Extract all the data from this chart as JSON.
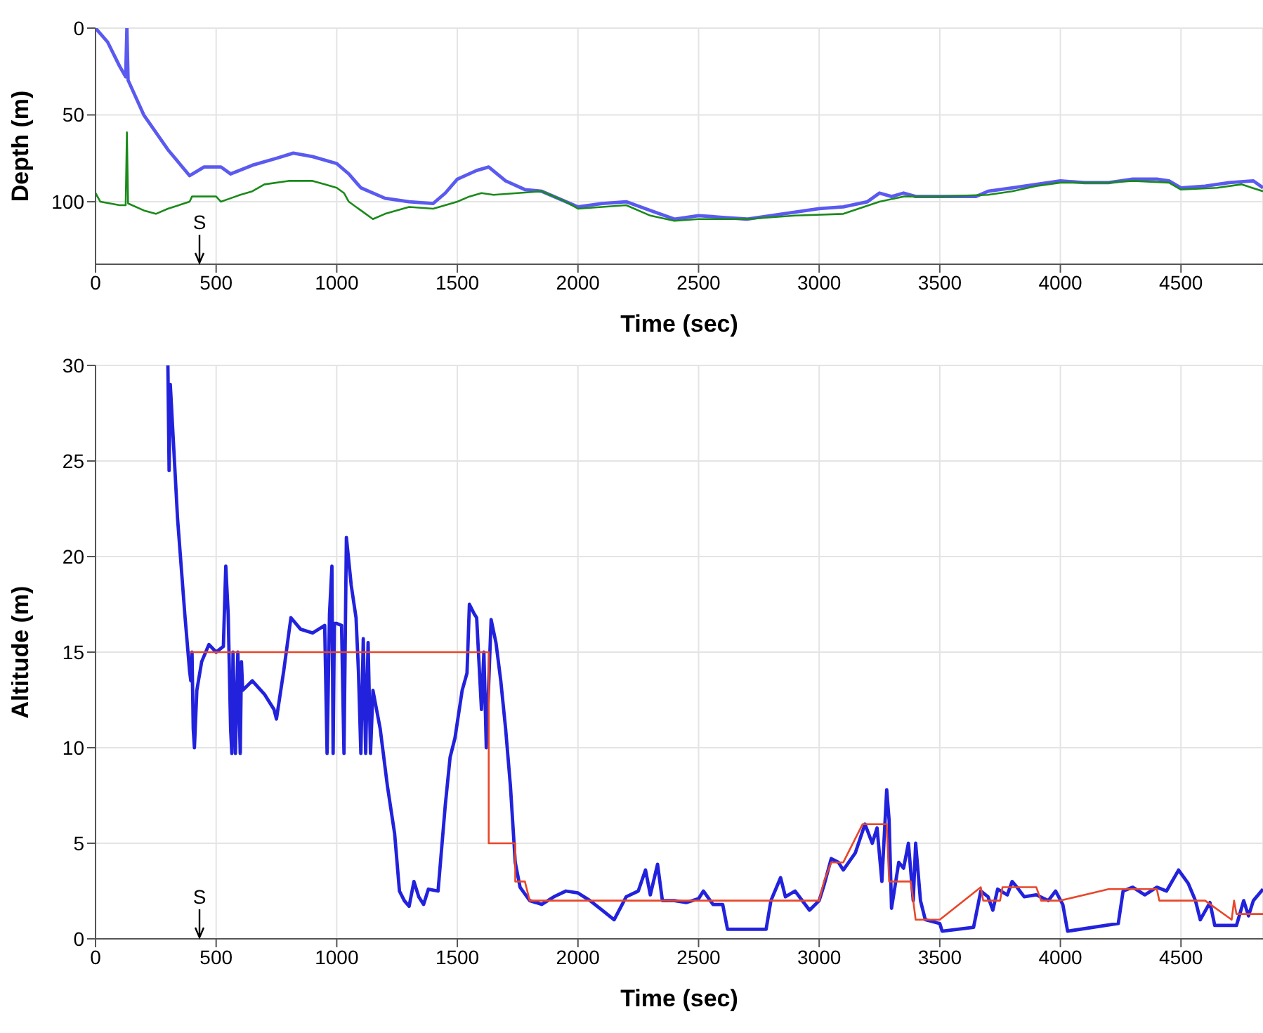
{
  "chart_data": [
    {
      "type": "line",
      "xlabel": "Time (sec)",
      "ylabel": "Depth (m)",
      "xlim": [
        0,
        4840
      ],
      "xticks": [
        0,
        500,
        1000,
        1500,
        2000,
        2500,
        3000,
        3500,
        4000,
        4500
      ],
      "ylim": [
        136,
        0
      ],
      "yticks": [
        0,
        50,
        100
      ],
      "grid": true,
      "annotations": [
        "S"
      ],
      "series": [
        {
          "color": "#5a5af0",
          "x": [
            0,
            50,
            100,
            125,
            130,
            135,
            200,
            300,
            390,
            450,
            520,
            560,
            650,
            750,
            820,
            900,
            1000,
            1050,
            1100,
            1200,
            1300,
            1400,
            1450,
            1500,
            1580,
            1630,
            1700,
            1780,
            1850,
            1950,
            2000,
            2100,
            2200,
            2300,
            2400,
            2500,
            2600,
            2700,
            2800,
            2900,
            3000,
            3100,
            3200,
            3250,
            3300,
            3350,
            3400,
            3500,
            3650,
            3700,
            3800,
            3900,
            4000,
            4100,
            4200,
            4300,
            4400,
            4450,
            4500,
            4600,
            4700,
            4800,
            4840
          ],
          "values": [
            0,
            8,
            22,
            28,
            0,
            30,
            50,
            70,
            85,
            80,
            80,
            84,
            79,
            75,
            72,
            74,
            78,
            84,
            92,
            98,
            100,
            101,
            95,
            87,
            82,
            80,
            88,
            93,
            94,
            100,
            103,
            101,
            100,
            105,
            110,
            108,
            109,
            110,
            108,
            106,
            104,
            103,
            100,
            95,
            97,
            95,
            97,
            97,
            97,
            94,
            92,
            90,
            88,
            89,
            89,
            87,
            87,
            88,
            92,
            91,
            89,
            88,
            92
          ]
        },
        {
          "color": "#1a8a1a",
          "x": [
            0,
            20,
            60,
            100,
            125,
            130,
            135,
            200,
            250,
            300,
            390,
            400,
            500,
            520,
            560,
            600,
            650,
            700,
            800,
            900,
            950,
            1000,
            1030,
            1050,
            1100,
            1150,
            1200,
            1300,
            1400,
            1450,
            1500,
            1550,
            1600,
            1650,
            1750,
            1850,
            1950,
            2000,
            2100,
            2200,
            2300,
            2400,
            2500,
            2700,
            2900,
            3100,
            3250,
            3350,
            3500,
            3700,
            3800,
            3900,
            4000,
            4200,
            4300,
            4450,
            4500,
            4650,
            4750,
            4840
          ],
          "values": [
            95,
            100,
            101,
            102,
            102,
            60,
            101,
            105,
            107,
            104,
            100,
            97,
            97,
            100,
            98,
            96,
            94,
            90,
            88,
            88,
            90,
            92,
            95,
            100,
            105,
            110,
            107,
            103,
            104,
            102,
            100,
            97,
            95,
            96,
            95,
            94,
            100,
            104,
            103,
            102,
            108,
            111,
            110,
            110,
            108,
            107,
            100,
            97,
            97,
            96,
            94,
            91,
            89,
            89,
            88,
            89,
            93,
            92,
            90,
            94
          ]
        }
      ]
    },
    {
      "type": "line",
      "xlabel": "Time (sec)",
      "ylabel": "Altitude (m)",
      "xlim": [
        0,
        4840
      ],
      "xticks": [
        0,
        500,
        1000,
        1500,
        2000,
        2500,
        3000,
        3500,
        4000,
        4500
      ],
      "ylim": [
        0,
        30
      ],
      "yticks": [
        0,
        5,
        10,
        15,
        20,
        25,
        30
      ],
      "grid": true,
      "annotations": [
        "S"
      ],
      "series": [
        {
          "color": "#2222dd",
          "x": [
            300,
            305,
            310,
            340,
            370,
            390,
            395,
            400,
            405,
            410,
            420,
            440,
            470,
            500,
            530,
            540,
            550,
            560,
            565,
            570,
            580,
            590,
            600,
            605,
            610,
            650,
            700,
            740,
            750,
            780,
            810,
            850,
            900,
            950,
            960,
            970,
            980,
            985,
            990,
            1000,
            1020,
            1030,
            1040,
            1060,
            1080,
            1090,
            1100,
            1110,
            1120,
            1130,
            1140,
            1150,
            1180,
            1210,
            1240,
            1260,
            1280,
            1300,
            1320,
            1340,
            1360,
            1380,
            1420,
            1450,
            1470,
            1490,
            1520,
            1540,
            1550,
            1570,
            1580,
            1600,
            1610,
            1620,
            1640,
            1660,
            1680,
            1700,
            1720,
            1740,
            1760,
            1800,
            1850,
            1900,
            1950,
            2000,
            2050,
            2100,
            2150,
            2200,
            2250,
            2280,
            2300,
            2330,
            2350,
            2400,
            2450,
            2500,
            2520,
            2560,
            2600,
            2620,
            2780,
            2800,
            2840,
            2860,
            2900,
            2960,
            3000,
            3020,
            3050,
            3080,
            3100,
            3150,
            3190,
            3220,
            3240,
            3260,
            3280,
            3290,
            3300,
            3330,
            3350,
            3370,
            3390,
            3400,
            3420,
            3440,
            3500,
            3510,
            3640,
            3670,
            3700,
            3720,
            3740,
            3780,
            3800,
            3820,
            3850,
            3900,
            3950,
            3980,
            4010,
            4030,
            4240,
            4260,
            4300,
            4350,
            4400,
            4440,
            4490,
            4530,
            4560,
            4580,
            4620,
            4640,
            4730,
            4760,
            4780,
            4800,
            4840
          ],
          "values": [
            30,
            24.5,
            29,
            22,
            17,
            14,
            13.5,
            15,
            11,
            10,
            13,
            14.5,
            15.4,
            15,
            15.3,
            19.5,
            17,
            11,
            9.7,
            15,
            9.7,
            15,
            9.7,
            14.5,
            13,
            13.5,
            12.8,
            12,
            11.5,
            14,
            16.8,
            16.2,
            16,
            16.4,
            9.7,
            17,
            19.5,
            9.7,
            16.5,
            16.5,
            16.4,
            9.7,
            21,
            18.5,
            16.8,
            14,
            9.7,
            15.7,
            9.7,
            15.5,
            9.7,
            13,
            11,
            8,
            5.5,
            2.5,
            2,
            1.7,
            3,
            2.2,
            1.8,
            2.6,
            2.5,
            7,
            9.5,
            10.5,
            13,
            13.9,
            17.5,
            17,
            16.8,
            12,
            15,
            10,
            16.7,
            15.5,
            13.5,
            11,
            8,
            4,
            2.7,
            2,
            1.8,
            2.2,
            2.5,
            2.4,
            2,
            1.5,
            1,
            2.2,
            2.5,
            3.6,
            2.3,
            3.9,
            2,
            2,
            1.9,
            2.1,
            2.5,
            1.8,
            1.8,
            0.5,
            0.5,
            2,
            3.2,
            2.2,
            2.5,
            1.5,
            2,
            2.8,
            4.2,
            4,
            3.6,
            4.5,
            6,
            5,
            5.8,
            3,
            7.8,
            6.2,
            1.6,
            4,
            3.7,
            5,
            2,
            5,
            2,
            1,
            0.8,
            0.4,
            0.6,
            2.5,
            2.2,
            1.5,
            2.6,
            2.3,
            3,
            2.7,
            2.2,
            2.3,
            2,
            2.5,
            1.8,
            0.4,
            0.8,
            2.5,
            2.7,
            2.3,
            2.7,
            2.5,
            3.6,
            2.9,
            2,
            1,
            1.9,
            0.7,
            0.7,
            2,
            1.2,
            2,
            2.6
          ]
        },
        {
          "color": "#e8472a",
          "x": [
            390,
            1630,
            1630,
            1740,
            1740,
            1780,
            1800,
            3000,
            3020,
            3050,
            3100,
            3180,
            3280,
            3290,
            3380,
            3390,
            3400,
            3500,
            3670,
            3680,
            3750,
            3760,
            3900,
            3920,
            4000,
            4200,
            4400,
            4410,
            4600,
            4710,
            4720,
            4730,
            4840
          ],
          "values": [
            15,
            15,
            5,
            5,
            3,
            3,
            2,
            2,
            3,
            4,
            4,
            6,
            6,
            3,
            3,
            2,
            1,
            1,
            2.7,
            2,
            2,
            2.7,
            2.7,
            2,
            2,
            2.6,
            2.6,
            2,
            2,
            1,
            2,
            1.3,
            1.3
          ]
        }
      ]
    }
  ]
}
